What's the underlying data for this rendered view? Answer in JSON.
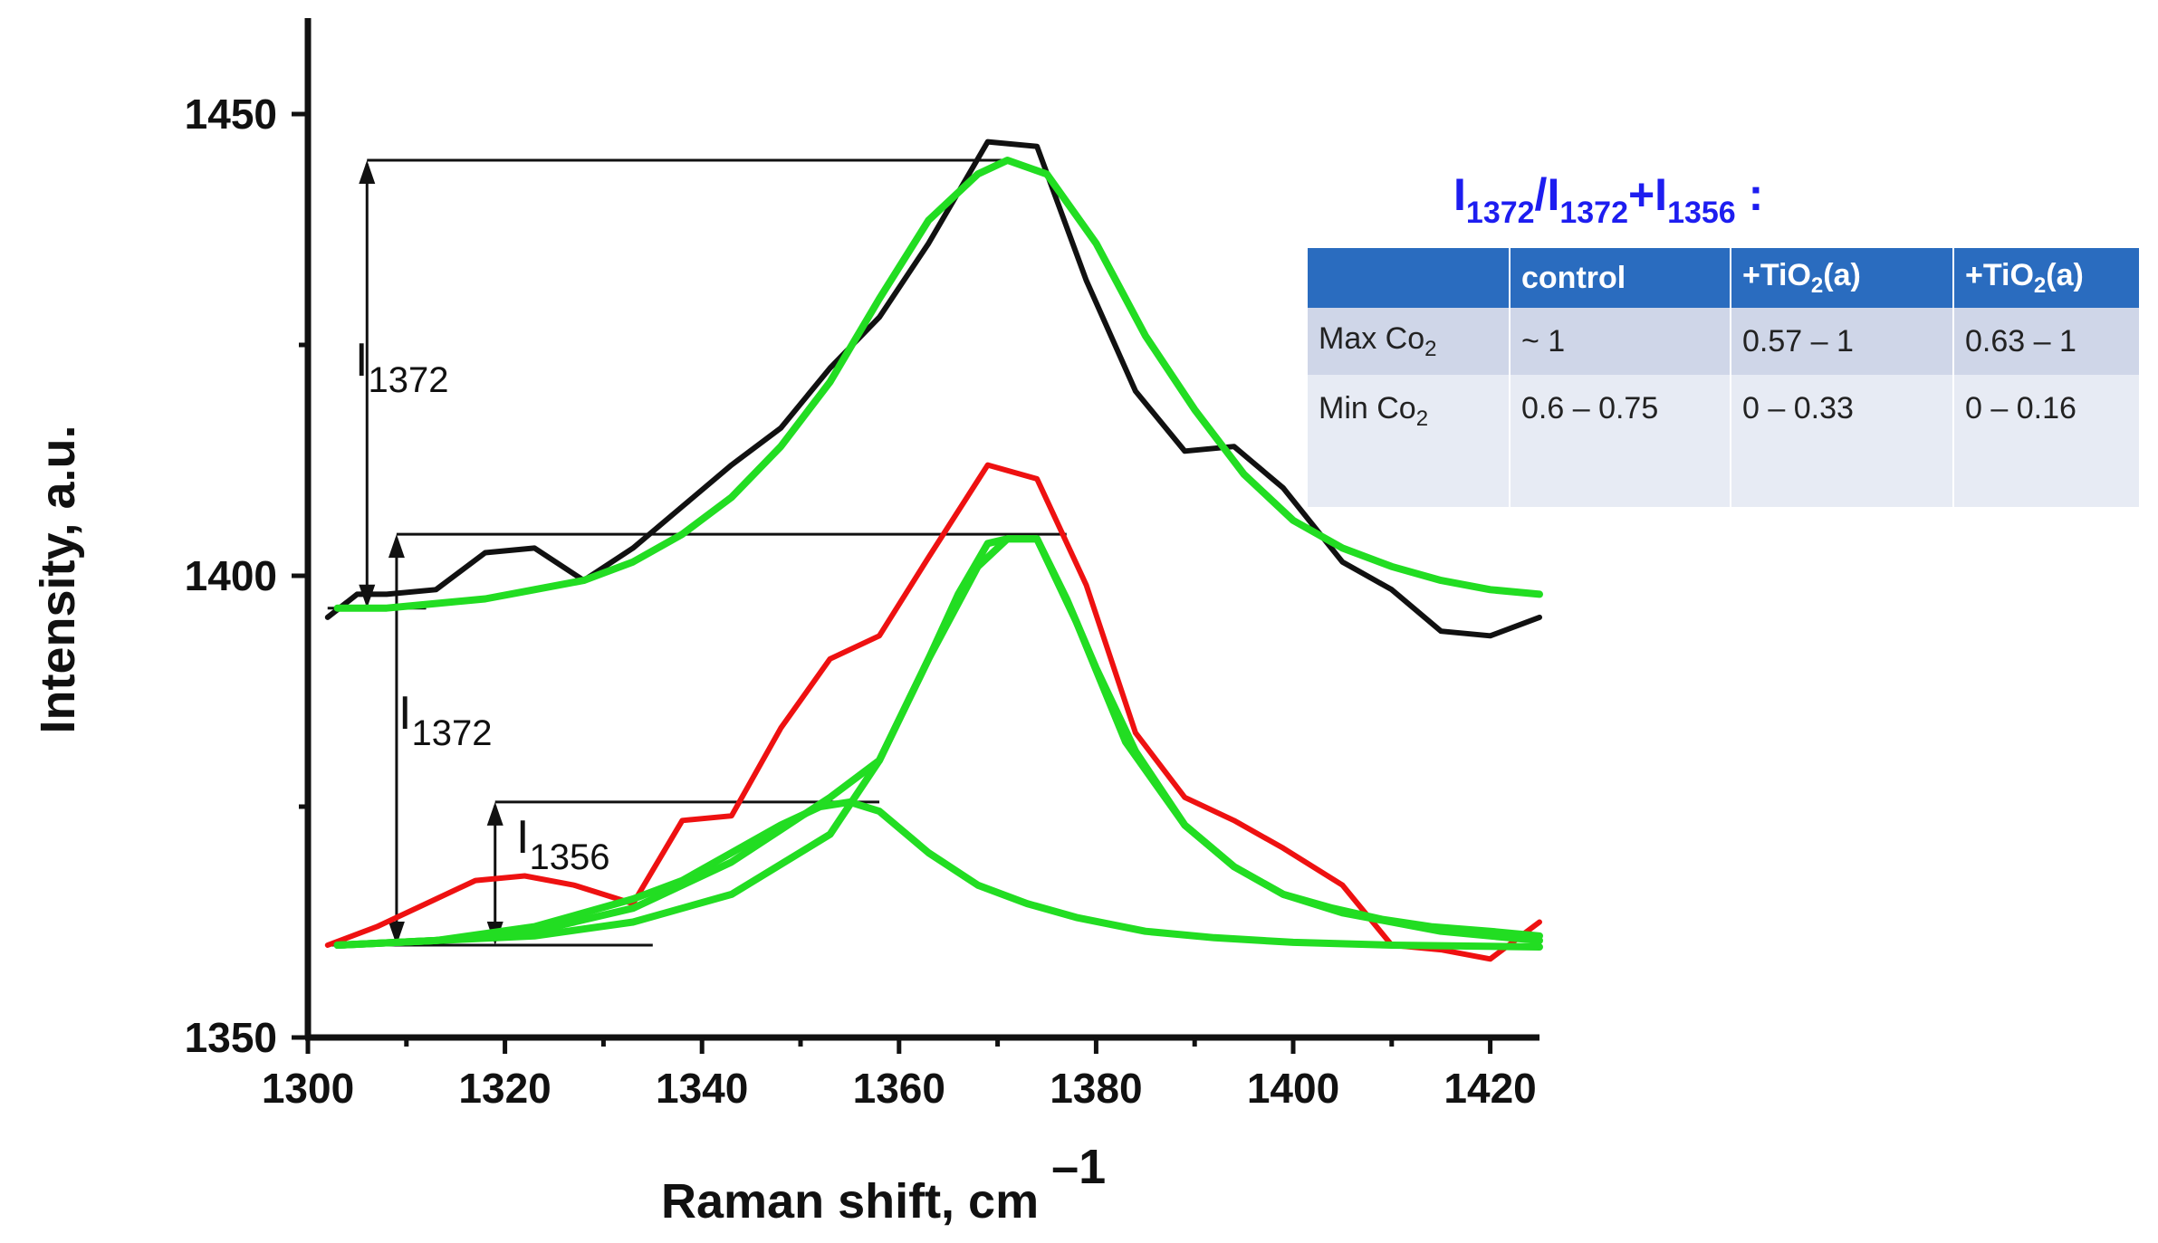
{
  "chart_data": {
    "type": "line",
    "title": "",
    "xlabel": "Raman shift, cm",
    "xlabel_sup": "–1",
    "ylabel": "Intensity, a.u.",
    "xlim": [
      1300,
      1425
    ],
    "ylim": [
      1350,
      1460
    ],
    "x_ticks": [
      1300,
      1320,
      1340,
      1360,
      1380,
      1400,
      1420
    ],
    "y_ticks": [
      1350,
      1400,
      1450
    ],
    "series": [
      {
        "name": "upper spectrum (black)",
        "color": "#111111",
        "x": [
          1302,
          1305,
          1308,
          1313,
          1318,
          1323,
          1328,
          1333,
          1338,
          1343,
          1348,
          1353,
          1358,
          1363,
          1369,
          1374,
          1379,
          1384,
          1389,
          1394,
          1399,
          1405,
          1410,
          1415,
          1420,
          1425
        ],
        "y": [
          1395.5,
          1398,
          1398,
          1398.5,
          1402.5,
          1403,
          1399.5,
          1403,
          1407.5,
          1412,
          1416,
          1422.5,
          1428,
          1436,
          1447,
          1446.5,
          1432,
          1420,
          1413.5,
          1414,
          1409.5,
          1401.5,
          1398.5,
          1394,
          1393.5,
          1395.5
        ]
      },
      {
        "name": "upper fit (green)",
        "color": "#22dd22",
        "x": [
          1303,
          1308,
          1313,
          1318,
          1323,
          1328,
          1333,
          1338,
          1343,
          1348,
          1353,
          1358,
          1363,
          1368,
          1371,
          1375,
          1380,
          1385,
          1390,
          1395,
          1400,
          1405,
          1410,
          1415,
          1420,
          1425
        ],
        "y": [
          1396.5,
          1396.5,
          1397,
          1397.5,
          1398.5,
          1399.5,
          1401.5,
          1404.5,
          1408.5,
          1414,
          1421,
          1430,
          1438.5,
          1443.5,
          1445,
          1443.5,
          1436,
          1426,
          1418,
          1411,
          1406,
          1403,
          1401,
          1399.5,
          1398.5,
          1398
        ]
      },
      {
        "name": "lower spectrum (red)",
        "color": "#ee1111",
        "x": [
          1302,
          1307,
          1312,
          1317,
          1322,
          1327,
          1333,
          1338,
          1343,
          1348,
          1353,
          1358,
          1363,
          1369,
          1374,
          1379,
          1384,
          1389,
          1394,
          1399,
          1405,
          1410,
          1415,
          1420,
          1425
        ],
        "y": [
          1360,
          1362,
          1364.5,
          1367,
          1367.5,
          1366.5,
          1364.5,
          1373.5,
          1374,
          1383.5,
          1391,
          1393.5,
          1402,
          1412,
          1410.5,
          1399,
          1383,
          1376,
          1373.5,
          1370.5,
          1366.5,
          1360,
          1359.5,
          1358.5,
          1362.5
        ]
      },
      {
        "name": "fit component 1372 (green)",
        "color": "#22dd22",
        "x": [
          1303,
          1313,
          1323,
          1333,
          1343,
          1353,
          1358,
          1363,
          1366,
          1369,
          1371,
          1374,
          1377,
          1380,
          1384,
          1389,
          1394,
          1399,
          1404,
          1409,
          1414,
          1420,
          1425
        ],
        "y": [
          1360,
          1360.5,
          1361,
          1362.5,
          1365.5,
          1372,
          1380,
          1391,
          1398,
          1403.5,
          1404,
          1404,
          1397.5,
          1390,
          1381,
          1373,
          1368.5,
          1365.5,
          1364,
          1362.8,
          1362,
          1361.5,
          1361
        ]
      },
      {
        "name": "fit component 1356 (green)",
        "color": "#22dd22",
        "x": [
          1303,
          1313,
          1323,
          1333,
          1338,
          1343,
          1348,
          1352,
          1355,
          1358,
          1363,
          1368,
          1373,
          1378,
          1385,
          1392,
          1400,
          1410,
          1425
        ],
        "y": [
          1360,
          1360.5,
          1362,
          1365,
          1367,
          1370,
          1373,
          1375,
          1375.5,
          1374.5,
          1370,
          1366.5,
          1364.5,
          1363,
          1361.5,
          1360.8,
          1360.3,
          1360,
          1359.8
        ]
      },
      {
        "name": "sum fit (green)",
        "color": "#22dd22",
        "x": [
          1303,
          1313,
          1323,
          1333,
          1338,
          1343,
          1348,
          1353,
          1358,
          1363,
          1368,
          1371,
          1374,
          1378,
          1383,
          1389,
          1394,
          1399,
          1405,
          1410,
          1415,
          1420,
          1425
        ],
        "y": [
          1360,
          1360.5,
          1361.5,
          1364,
          1366.5,
          1369,
          1372.5,
          1376,
          1380,
          1391,
          1401,
          1404,
          1404,
          1395,
          1382,
          1373,
          1368.5,
          1365.5,
          1363.5,
          1362.5,
          1361.5,
          1361,
          1360.5
        ]
      }
    ],
    "annotations": {
      "upper_arrow": {
        "label": "I",
        "label_sub": "1372",
        "x": 1306,
        "y_from": 1396.5,
        "y_to": 1445
      },
      "lower_large_arrow": {
        "label": "I",
        "label_sub": "1372",
        "x": 1309,
        "y_from": 1360,
        "y_to": 1404.5
      },
      "lower_small_arrow": {
        "label": "I",
        "label_sub": "1356",
        "x": 1319,
        "y_from": 1360,
        "y_to": 1375.5
      }
    }
  },
  "ratio_table": {
    "title_parts": [
      "I",
      "1372",
      "/I",
      "1372",
      "+I",
      "1356",
      " :"
    ],
    "headers": [
      "",
      "control",
      "+TiO",
      "2",
      "(a)",
      "+TiO",
      "2",
      "(a)"
    ],
    "header_cells": [
      {
        "main": "",
        "sub": "",
        "after": ""
      },
      {
        "main": "control",
        "sub": "",
        "after": ""
      },
      {
        "main": "+TiO",
        "sub": "2",
        "after": "(a)"
      },
      {
        "main": "+TiO",
        "sub": "2",
        "after": "(a)"
      }
    ],
    "rows": [
      {
        "label": "Max Co",
        "label_sub": "2",
        "values": [
          "~ 1",
          "0.57 – 1",
          "0.63 – 1"
        ]
      },
      {
        "label": "Min Co",
        "label_sub": "2",
        "values": [
          "0.6 – 0.75",
          "0 – 0.33",
          "0 – 0.16"
        ]
      }
    ]
  }
}
